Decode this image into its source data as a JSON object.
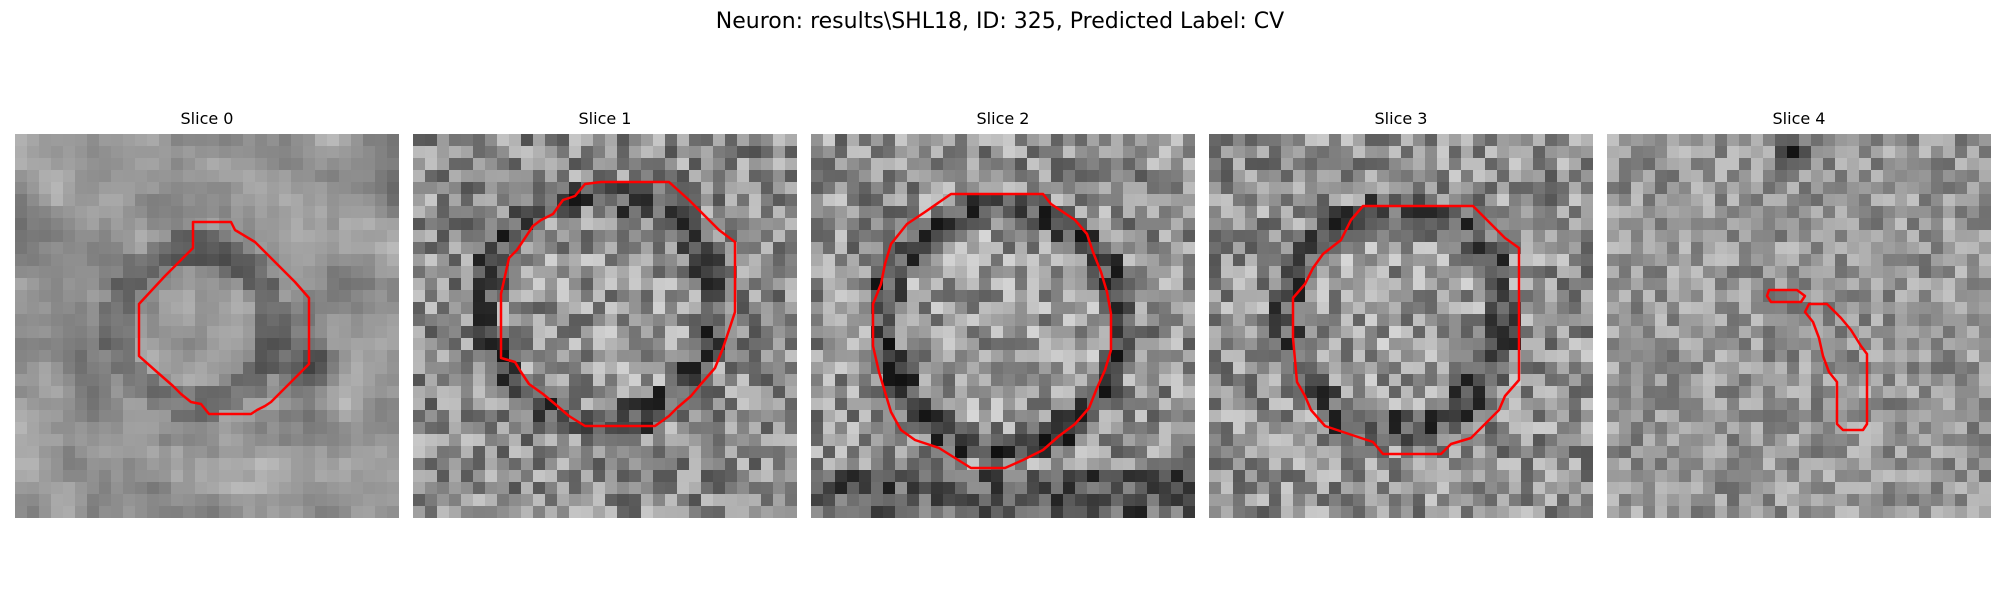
{
  "figure": {
    "title": "Neuron: results\\SHL18, ID: 325, Predicted Label: CV"
  },
  "colors": {
    "contour": "#ff0000",
    "background": "#ffffff"
  },
  "panels": [
    {
      "title": "Slice 0"
    },
    {
      "title": "Slice 1"
    },
    {
      "title": "Slice 2"
    },
    {
      "title": "Slice 3"
    },
    {
      "title": "Slice 4"
    }
  ]
}
